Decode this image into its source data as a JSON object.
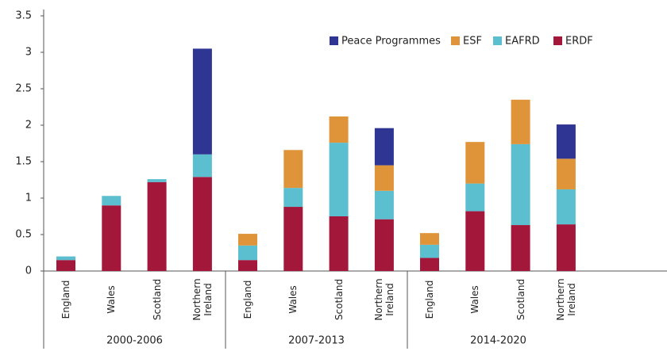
{
  "chart_data": {
    "type": "stacked-bar",
    "categories": [
      "England",
      "Wales",
      "Scotland",
      "Northern Ireland",
      "England",
      "Wales",
      "Scotland",
      "Northern Ireland",
      "England",
      "Wales",
      "Scotland",
      "Northern Ireland"
    ],
    "groups": [
      "2000-2006",
      "2007-2013",
      "2014-2020"
    ],
    "series": [
      {
        "name": "ERDF",
        "color": "#a3173a",
        "values": [
          0.15,
          0.9,
          1.22,
          1.29,
          0.15,
          0.88,
          0.75,
          0.71,
          0.18,
          0.82,
          0.63,
          0.64
        ]
      },
      {
        "name": "EAFRD",
        "color": "#5bbfd0",
        "values": [
          0.05,
          0.13,
          0.04,
          0.31,
          0.2,
          0.26,
          1.01,
          0.39,
          0.18,
          0.38,
          1.11,
          0.48
        ]
      },
      {
        "name": "ESF",
        "color": "#e0943a",
        "values": [
          null,
          null,
          null,
          null,
          0.16,
          0.52,
          0.36,
          0.35,
          0.16,
          0.57,
          0.61,
          0.42
        ]
      },
      {
        "name": "Peace Programmes",
        "color": "#2e3592",
        "values": [
          null,
          null,
          null,
          1.45,
          null,
          null,
          null,
          0.51,
          null,
          null,
          null,
          0.47
        ]
      }
    ],
    "ylim": [
      0,
      3.5
    ],
    "yticks": [
      0,
      0.5,
      1,
      1.5,
      2,
      2.5,
      3,
      3.5
    ]
  }
}
